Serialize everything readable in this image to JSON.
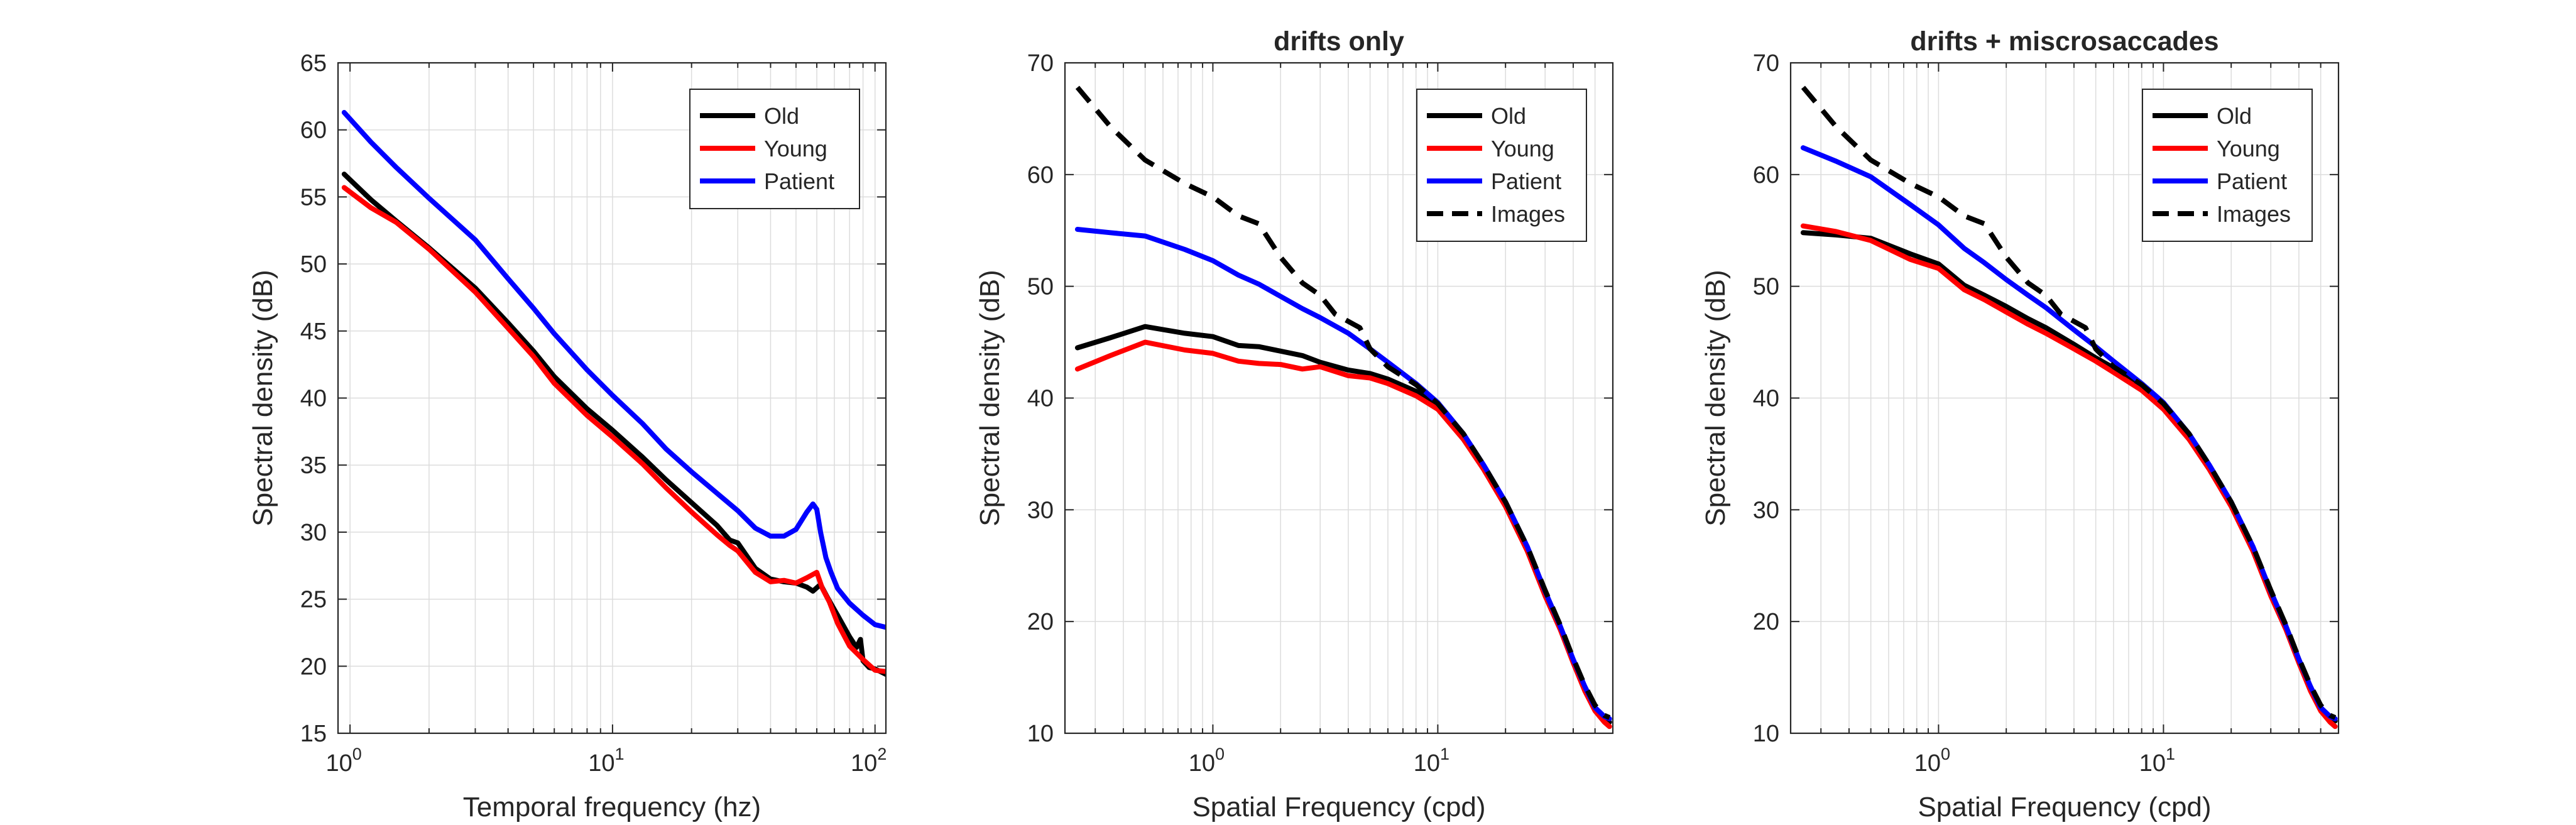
{
  "chart_data": [
    {
      "type": "line",
      "title": "",
      "xlabel": "Temporal frequency (hz)",
      "ylabel": "Spectral density (dB)",
      "xscale": "log",
      "xlim": [
        0.9,
        110
      ],
      "ylim": [
        15,
        65
      ],
      "yticks": [
        15,
        20,
        25,
        30,
        35,
        40,
        45,
        50,
        55,
        60,
        65
      ],
      "xticks": [
        {
          "base": "10",
          "exp": "0",
          "value": 1
        },
        {
          "base": "10",
          "exp": "1",
          "value": 10
        },
        {
          "base": "10",
          "exp": "2",
          "value": 100
        }
      ],
      "grid": true,
      "legend_position": "top-right",
      "series": [
        {
          "name": "Old",
          "color": "#000000",
          "dash": "solid",
          "x": [
            0.95,
            1.2,
            1.5,
            2,
            3,
            4,
            5,
            6,
            8,
            10,
            13,
            16,
            20,
            25,
            28,
            30,
            35,
            40,
            45,
            50,
            55,
            58,
            62,
            66,
            72,
            80,
            85,
            88,
            90,
            95,
            100,
            110
          ],
          "y": [
            56.7,
            54.8,
            53.2,
            51.2,
            48.2,
            45.6,
            43.5,
            41.6,
            39.2,
            37.6,
            35.6,
            33.9,
            32.2,
            30.5,
            29.4,
            29.2,
            27.3,
            26.5,
            26.3,
            26.2,
            25.9,
            25.6,
            26.1,
            25.1,
            23.8,
            22.2,
            21.4,
            22.0,
            20.4,
            19.9,
            19.8,
            19.4
          ]
        },
        {
          "name": "Young",
          "color": "#ff0000",
          "dash": "solid",
          "x": [
            0.95,
            1.2,
            1.5,
            2,
            3,
            4,
            5,
            6,
            8,
            10,
            13,
            16,
            20,
            25,
            28,
            30,
            35,
            40,
            45,
            50,
            55,
            60,
            63,
            67,
            72,
            80,
            90,
            100,
            110
          ],
          "y": [
            55.7,
            54.2,
            53.1,
            51.1,
            47.9,
            45.2,
            43.1,
            41.1,
            38.7,
            37.1,
            35.1,
            33.3,
            31.5,
            29.8,
            29.0,
            28.6,
            27.0,
            26.3,
            26.4,
            26.2,
            26.6,
            27.0,
            25.8,
            24.8,
            23.2,
            21.5,
            20.5,
            19.7,
            19.6
          ]
        },
        {
          "name": "Patient",
          "color": "#0000ff",
          "dash": "solid",
          "x": [
            0.95,
            1.2,
            1.5,
            2,
            3,
            4,
            5,
            6,
            8,
            10,
            13,
            16,
            20,
            25,
            30,
            35,
            40,
            45,
            50,
            55,
            58,
            60,
            62,
            65,
            68,
            72,
            80,
            90,
            100,
            110
          ],
          "y": [
            61.3,
            59.1,
            57.2,
            54.9,
            51.8,
            48.9,
            46.7,
            44.8,
            42.1,
            40.2,
            38.1,
            36.2,
            34.5,
            32.9,
            31.6,
            30.3,
            29.7,
            29.7,
            30.2,
            31.5,
            32.1,
            31.7,
            30.0,
            28.1,
            27.0,
            25.8,
            24.7,
            23.8,
            23.1,
            22.9
          ]
        }
      ]
    },
    {
      "type": "line",
      "title": "drifts only",
      "xlabel": "Spatial Frequency (cpd)",
      "ylabel": "Spectral density (dB)",
      "xscale": "log",
      "xlim": [
        0.22,
        60
      ],
      "ylim": [
        10,
        70
      ],
      "yticks": [
        10,
        20,
        30,
        40,
        50,
        60,
        70
      ],
      "xticks": [
        {
          "base": "10",
          "exp": "0",
          "value": 1
        },
        {
          "base": "10",
          "exp": "1",
          "value": 10
        }
      ],
      "grid": true,
      "legend_position": "top-right",
      "series": [
        {
          "name": "Old",
          "color": "#000000",
          "dash": "solid",
          "x": [
            0.25,
            0.35,
            0.5,
            0.75,
            1.0,
            1.3,
            1.6,
            2.0,
            2.5,
            3.0,
            4.0,
            5.0,
            6.0,
            8.0,
            10,
            13,
            16,
            20,
            25,
            30,
            35,
            40,
            45,
            50,
            55,
            58
          ],
          "y": [
            44.5,
            45.4,
            46.4,
            45.8,
            45.5,
            44.7,
            44.6,
            44.2,
            43.8,
            43.2,
            42.5,
            42.2,
            41.7,
            40.6,
            39.3,
            36.5,
            33.8,
            30.5,
            26.5,
            22.5,
            19.5,
            16.5,
            14.0,
            12.2,
            11.3,
            11.0
          ]
        },
        {
          "name": "Young",
          "color": "#ff0000",
          "dash": "solid",
          "x": [
            0.25,
            0.35,
            0.5,
            0.75,
            1.0,
            1.3,
            1.6,
            2.0,
            2.5,
            3.0,
            4.0,
            5.0,
            6.0,
            8.0,
            10,
            13,
            16,
            20,
            25,
            30,
            35,
            40,
            45,
            50,
            55,
            58
          ],
          "y": [
            42.6,
            43.8,
            45.0,
            44.3,
            44.0,
            43.3,
            43.1,
            43.0,
            42.6,
            42.8,
            42.0,
            41.8,
            41.3,
            40.2,
            39.0,
            36.3,
            33.6,
            30.3,
            26.3,
            22.3,
            19.3,
            16.3,
            13.8,
            12.0,
            11.0,
            10.6
          ]
        },
        {
          "name": "Patient",
          "color": "#0000ff",
          "dash": "solid",
          "x": [
            0.25,
            0.35,
            0.5,
            0.75,
            1.0,
            1.3,
            1.6,
            2.0,
            2.5,
            3.0,
            4.0,
            5.0,
            6.0,
            8.0,
            10,
            13,
            16,
            20,
            25,
            30,
            35,
            40,
            45,
            50,
            55,
            58
          ],
          "y": [
            55.1,
            54.8,
            54.5,
            53.3,
            52.3,
            51.0,
            50.2,
            49.1,
            48.0,
            47.2,
            45.8,
            44.4,
            43.2,
            41.3,
            39.6,
            36.8,
            34.0,
            30.7,
            26.7,
            22.7,
            19.6,
            16.6,
            14.2,
            12.3,
            11.5,
            11.3
          ]
        },
        {
          "name": "Images",
          "color": "#000000",
          "dash": "dashed",
          "x": [
            0.25,
            0.35,
            0.5,
            0.75,
            1.0,
            1.3,
            1.6,
            2.0,
            2.5,
            3.0,
            3.5,
            4.5,
            5.0,
            6.0,
            8.0,
            10,
            13,
            16,
            20,
            25,
            30,
            35,
            40,
            45,
            50,
            55,
            58
          ],
          "y": [
            67.8,
            64.3,
            61.3,
            59.2,
            58.0,
            56.3,
            55.6,
            52.6,
            50.3,
            49.2,
            47.5,
            46.3,
            44.4,
            42.8,
            41.2,
            39.5,
            36.8,
            34.0,
            30.7,
            26.7,
            22.8,
            19.7,
            16.7,
            14.3,
            12.5,
            11.6,
            11.4
          ]
        }
      ]
    },
    {
      "type": "line",
      "title": "drifts + miscrosaccades",
      "xlabel": "Spatial Frequency (cpd)",
      "ylabel": "Spectral density (dB)",
      "xscale": "log",
      "xlim": [
        0.22,
        60
      ],
      "ylim": [
        10,
        70
      ],
      "yticks": [
        10,
        20,
        30,
        40,
        50,
        60,
        70
      ],
      "xticks": [
        {
          "base": "10",
          "exp": "0",
          "value": 1
        },
        {
          "base": "10",
          "exp": "1",
          "value": 10
        }
      ],
      "grid": true,
      "legend_position": "top-right",
      "series": [
        {
          "name": "Old",
          "color": "#000000",
          "dash": "solid",
          "x": [
            0.25,
            0.35,
            0.5,
            0.75,
            1.0,
            1.3,
            1.6,
            2.0,
            2.5,
            3.0,
            4.0,
            5.0,
            6.0,
            8.0,
            10,
            13,
            16,
            20,
            25,
            30,
            35,
            40,
            45,
            50,
            55,
            58
          ],
          "y": [
            54.8,
            54.6,
            54.3,
            52.9,
            52.0,
            50.1,
            49.2,
            48.2,
            47.1,
            46.3,
            44.8,
            43.6,
            42.7,
            41.0,
            39.3,
            36.6,
            33.9,
            30.6,
            26.6,
            22.6,
            19.6,
            16.6,
            14.1,
            12.3,
            11.4,
            11.1
          ]
        },
        {
          "name": "Young",
          "color": "#ff0000",
          "dash": "solid",
          "x": [
            0.25,
            0.35,
            0.5,
            0.75,
            1.0,
            1.3,
            1.6,
            2.0,
            2.5,
            3.0,
            4.0,
            5.0,
            6.0,
            8.0,
            10,
            13,
            16,
            20,
            25,
            30,
            35,
            40,
            45,
            50,
            55,
            58
          ],
          "y": [
            55.4,
            54.9,
            54.1,
            52.4,
            51.6,
            49.7,
            48.8,
            47.7,
            46.6,
            45.8,
            44.4,
            43.3,
            42.3,
            40.7,
            39.0,
            36.3,
            33.6,
            30.3,
            26.3,
            22.3,
            19.3,
            16.3,
            13.8,
            12.0,
            11.0,
            10.6
          ]
        },
        {
          "name": "Patient",
          "color": "#0000ff",
          "dash": "solid",
          "x": [
            0.25,
            0.35,
            0.5,
            0.75,
            1.0,
            1.3,
            1.6,
            2.0,
            2.5,
            3.0,
            4.0,
            5.0,
            6.0,
            8.0,
            10,
            13,
            16,
            20,
            25,
            30,
            35,
            40,
            45,
            50,
            55,
            58
          ],
          "y": [
            62.4,
            61.2,
            59.8,
            57.3,
            55.5,
            53.4,
            52.1,
            50.6,
            49.2,
            48.1,
            46.1,
            44.6,
            43.3,
            41.3,
            39.6,
            36.8,
            34.0,
            30.7,
            26.7,
            22.7,
            19.6,
            16.6,
            14.2,
            12.3,
            11.5,
            11.3
          ]
        },
        {
          "name": "Images",
          "color": "#000000",
          "dash": "dashed",
          "x": [
            0.25,
            0.35,
            0.5,
            0.75,
            1.0,
            1.3,
            1.6,
            2.0,
            2.5,
            3.0,
            3.5,
            4.5,
            5.0,
            6.0,
            8.0,
            10,
            13,
            16,
            20,
            25,
            30,
            35,
            40,
            45,
            50,
            55,
            58
          ],
          "y": [
            67.8,
            64.3,
            61.3,
            59.2,
            58.0,
            56.3,
            55.6,
            52.6,
            50.3,
            49.2,
            47.5,
            46.3,
            44.4,
            42.8,
            41.2,
            39.5,
            36.8,
            34.0,
            30.7,
            26.7,
            22.8,
            19.7,
            16.7,
            14.3,
            12.5,
            11.6,
            11.4
          ]
        }
      ]
    }
  ]
}
